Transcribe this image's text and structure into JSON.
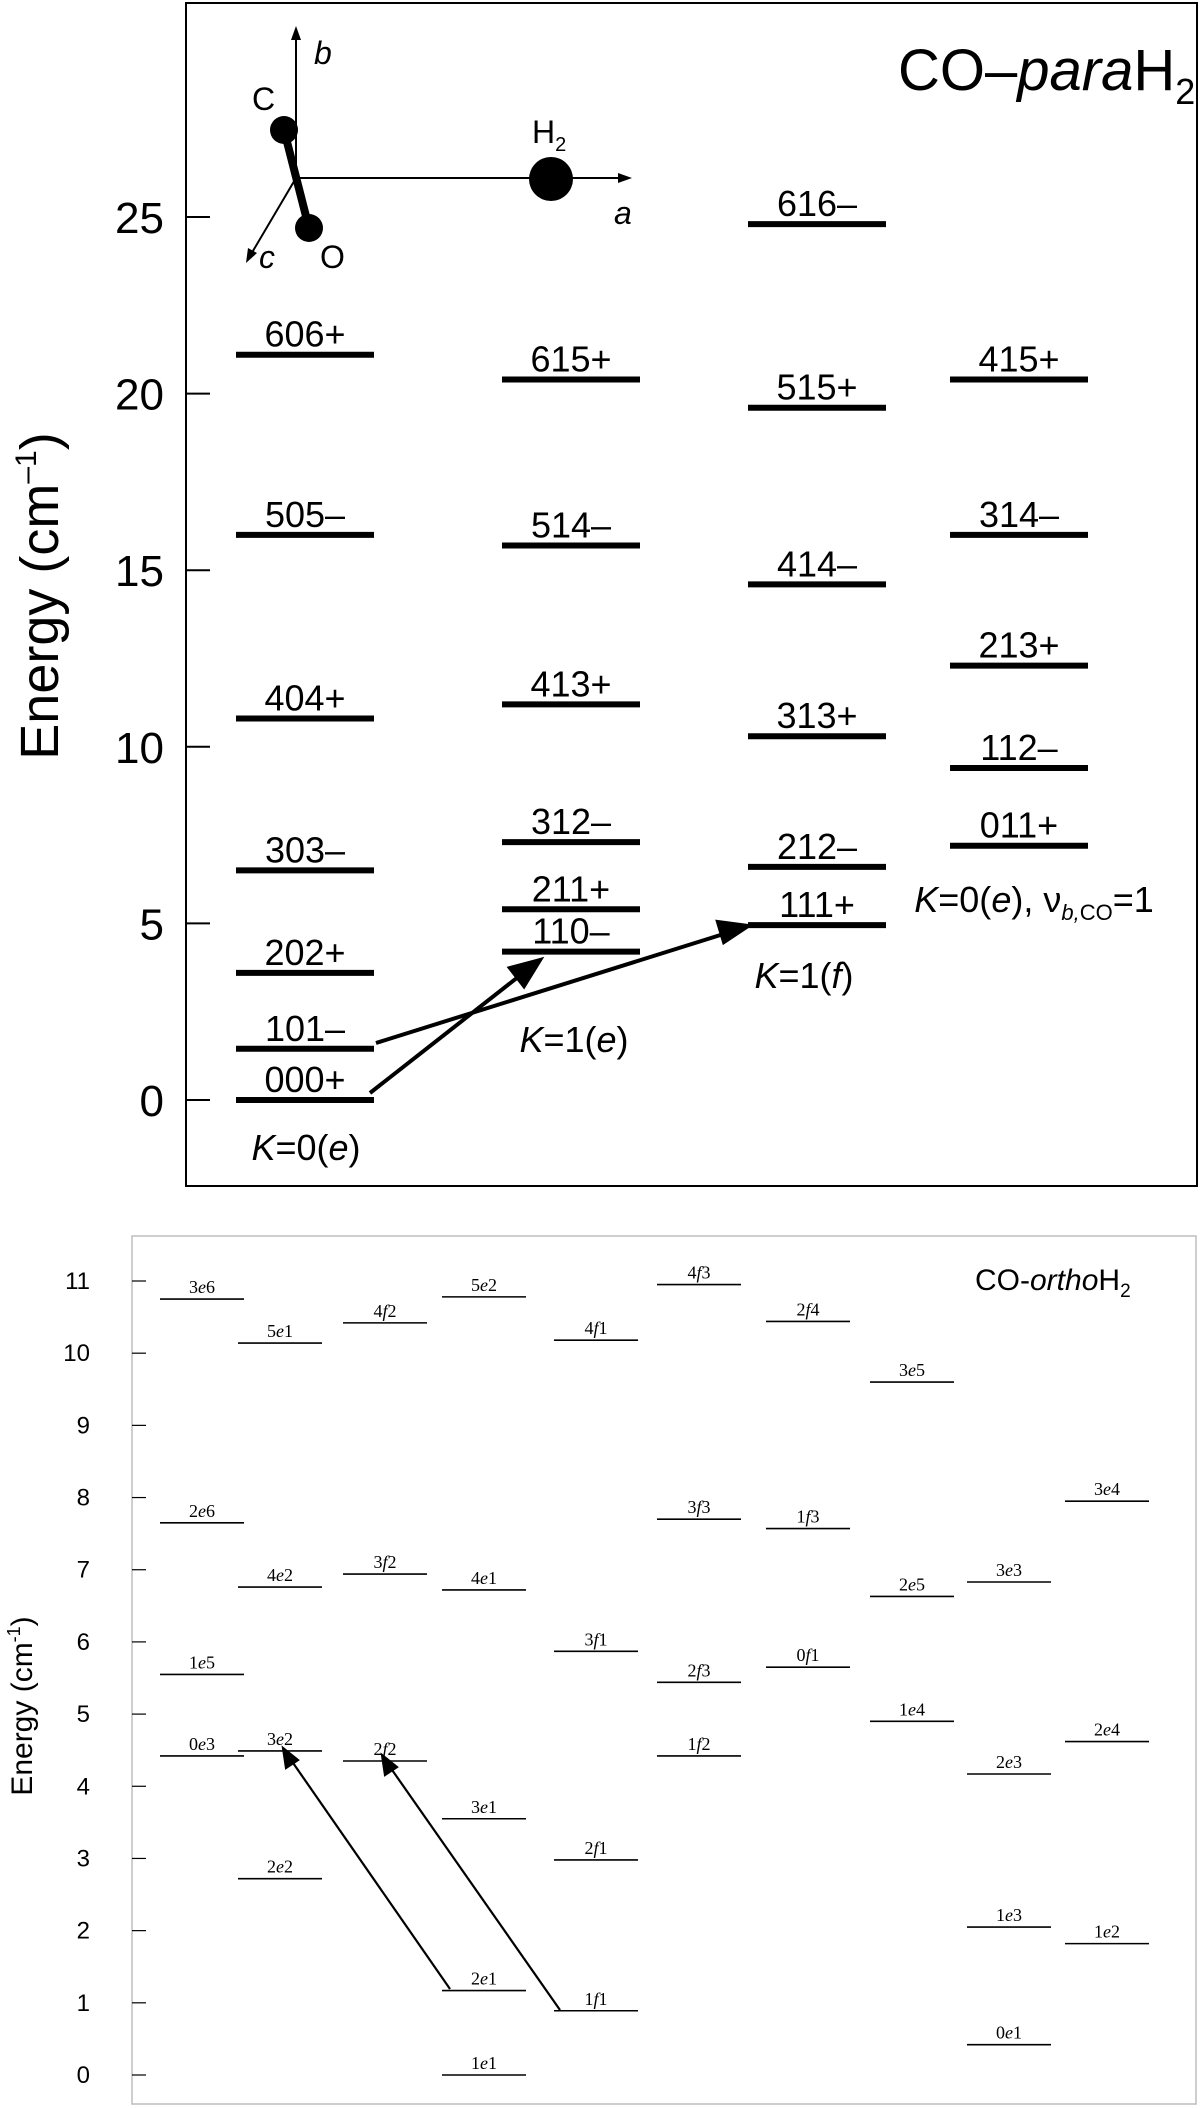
{
  "para": {
    "title_prefix": "CO–",
    "title_italic": "para",
    "title_suffix": "H",
    "title_sub": "2",
    "ylabel_main": "Energy  (cm",
    "ylabel_exp": "–1",
    "ylabel_close": ")",
    "yticks": [
      0,
      5,
      10,
      15,
      20,
      25
    ],
    "columns": [
      {
        "id": "k0e",
        "levels": [
          {
            "label": "000+",
            "energy": 0.0
          },
          {
            "label": "101–",
            "energy": 1.45
          },
          {
            "label": "202+",
            "energy": 3.6
          },
          {
            "label": "303–",
            "energy": 6.5
          },
          {
            "label": "404+",
            "energy": 10.8
          },
          {
            "label": "505–",
            "energy": 16.0
          },
          {
            "label": "606+",
            "energy": 21.1
          }
        ]
      },
      {
        "id": "k1e",
        "levels": [
          {
            "label": "110–",
            "energy": 4.2
          },
          {
            "label": "211+",
            "energy": 5.4
          },
          {
            "label": "312–",
            "energy": 7.3
          },
          {
            "label": "413+",
            "energy": 11.2
          },
          {
            "label": "514–",
            "energy": 15.7
          },
          {
            "label": "615+",
            "energy": 20.4
          }
        ]
      },
      {
        "id": "k1f",
        "levels": [
          {
            "label": "111+",
            "energy": 4.95
          },
          {
            "label": "212–",
            "energy": 6.6
          },
          {
            "label": "313+",
            "energy": 10.3
          },
          {
            "label": "414–",
            "energy": 14.6
          },
          {
            "label": "515+",
            "energy": 19.6
          },
          {
            "label": "616–",
            "energy": 24.8
          }
        ]
      },
      {
        "id": "k0e_vb",
        "levels": [
          {
            "label": "011+",
            "energy": 7.2
          },
          {
            "label": "112–",
            "energy": 9.4
          },
          {
            "label": "213+",
            "energy": 12.3
          },
          {
            "label": "314–",
            "energy": 16.0
          },
          {
            "label": "415+",
            "energy": 20.4
          }
        ]
      }
    ],
    "col_labels": {
      "k0e": {
        "k": "K",
        "eq": "=0(",
        "p": "e",
        "end": ")"
      },
      "k1e": {
        "k": "K",
        "eq": "=1(",
        "p": "e",
        "end": ")"
      },
      "k1f": {
        "k": "K",
        "eq": "=1(",
        "p": "f",
        "end": ")"
      },
      "k0e_vb": {
        "k": "K",
        "eq": "=0(",
        "p": "e",
        "mid": "), ν",
        "sub": "b,",
        "sub2": "CO",
        "end": "=1"
      }
    },
    "molecule": {
      "C": "C",
      "O": "O",
      "H": "H",
      "Hsub": "2",
      "axis_a": "a",
      "axis_b": "b",
      "axis_c": "c"
    }
  },
  "ortho": {
    "title_prefix": "CO-",
    "title_italic": "ortho",
    "title_suffix": "H",
    "title_sub": "2",
    "ylabel_main": "Energy (cm",
    "ylabel_exp": "-1",
    "ylabel_close": ")",
    "yticks": [
      0,
      1,
      2,
      3,
      4,
      5,
      6,
      7,
      8,
      9,
      10,
      11
    ],
    "columns": [
      {
        "levels": [
          {
            "n": "0",
            "p": "e",
            "c": "3",
            "energy": 4.42
          },
          {
            "n": "1",
            "p": "e",
            "c": "5",
            "energy": 5.55
          },
          {
            "n": "2",
            "p": "e",
            "c": "6",
            "energy": 7.65
          },
          {
            "n": "3",
            "p": "e",
            "c": "6",
            "energy": 10.75
          }
        ]
      },
      {
        "levels": [
          {
            "n": "2",
            "p": "e",
            "c": "2",
            "energy": 2.72
          },
          {
            "n": "3",
            "p": "e",
            "c": "2",
            "energy": 4.49
          },
          {
            "n": "4",
            "p": "e",
            "c": "2",
            "energy": 6.76
          },
          {
            "n": "5",
            "p": "e",
            "c": "1",
            "energy": 10.14
          }
        ]
      },
      {
        "levels": [
          {
            "n": "2",
            "p": "f",
            "c": "2",
            "energy": 4.35
          },
          {
            "n": "3",
            "p": "f",
            "c": "2",
            "energy": 6.94
          },
          {
            "n": "4",
            "p": "f",
            "c": "2",
            "energy": 10.42
          }
        ]
      },
      {
        "levels": [
          {
            "n": "1",
            "p": "e",
            "c": "1",
            "energy": 0.0
          },
          {
            "n": "2",
            "p": "e",
            "c": "1",
            "energy": 1.17
          },
          {
            "n": "3",
            "p": "e",
            "c": "1",
            "energy": 3.55
          },
          {
            "n": "4",
            "p": "e",
            "c": "1",
            "energy": 6.72
          },
          {
            "n": "5",
            "p": "e",
            "c": "2",
            "energy": 10.78
          }
        ]
      },
      {
        "levels": [
          {
            "n": "1",
            "p": "f",
            "c": "1",
            "energy": 0.89
          },
          {
            "n": "2",
            "p": "f",
            "c": "1",
            "energy": 2.98
          },
          {
            "n": "3",
            "p": "f",
            "c": "1",
            "energy": 5.87
          },
          {
            "n": "4",
            "p": "f",
            "c": "1",
            "energy": 10.18
          }
        ]
      },
      {
        "levels": [
          {
            "n": "1",
            "p": "f",
            "c": "2",
            "energy": 4.42
          },
          {
            "n": "2",
            "p": "f",
            "c": "3",
            "energy": 5.44
          },
          {
            "n": "3",
            "p": "f",
            "c": "3",
            "energy": 7.7
          },
          {
            "n": "4",
            "p": "f",
            "c": "3",
            "energy": 10.95
          }
        ]
      },
      {
        "levels": [
          {
            "n": "0",
            "p": "f",
            "c": "1",
            "energy": 5.65
          },
          {
            "n": "1",
            "p": "f",
            "c": "3",
            "energy": 7.57
          },
          {
            "n": "2",
            "p": "f",
            "c": "4",
            "energy": 10.44
          }
        ]
      },
      {
        "levels": [
          {
            "n": "1",
            "p": "e",
            "c": "4",
            "energy": 4.9
          },
          {
            "n": "2",
            "p": "e",
            "c": "5",
            "energy": 6.63
          },
          {
            "n": "3",
            "p": "e",
            "c": "5",
            "energy": 9.6
          }
        ]
      },
      {
        "levels": [
          {
            "n": "0",
            "p": "e",
            "c": "1",
            "energy": 0.42
          },
          {
            "n": "1",
            "p": "e",
            "c": "3",
            "energy": 2.05
          },
          {
            "n": "2",
            "p": "e",
            "c": "3",
            "energy": 4.17
          },
          {
            "n": "3",
            "p": "e",
            "c": "3",
            "energy": 6.83
          }
        ]
      },
      {
        "levels": [
          {
            "n": "1",
            "p": "e",
            "c": "2",
            "energy": 1.82
          },
          {
            "n": "2",
            "p": "e",
            "c": "4",
            "energy": 4.62
          },
          {
            "n": "3",
            "p": "e",
            "c": "4",
            "energy": 7.95
          }
        ]
      }
    ]
  },
  "colors": {
    "ink": "#000000",
    "frame_top": "#000000",
    "frame_bottom": "#bdbdbd",
    "bg": "#ffffff"
  }
}
